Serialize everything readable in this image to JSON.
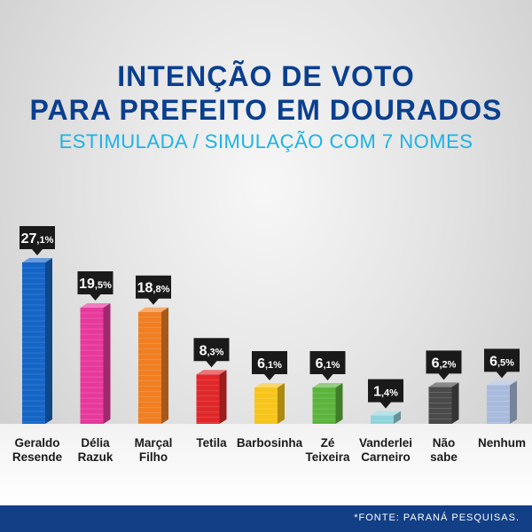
{
  "chart_data": {
    "type": "bar",
    "title": "INTENÇÃO DE VOTO",
    "title_line2": "PARA PREFEITO EM DOURADOS",
    "subtitle": "ESTIMULADA / SIMULAÇÃO COM 7 NOMES",
    "unit": "%",
    "categories": [
      [
        "Geraldo",
        "Resende"
      ],
      [
        "Délia",
        "Razuk"
      ],
      [
        "Marçal",
        "Filho"
      ],
      [
        "Tetila"
      ],
      [
        "Barbosinha"
      ],
      [
        "Zé",
        "Teixeira"
      ],
      [
        "Vanderlei",
        "Carneiro"
      ],
      [
        "Não",
        "sabe"
      ],
      [
        "Nenhum"
      ]
    ],
    "values": [
      27.1,
      19.5,
      18.8,
      8.3,
      6.1,
      6.1,
      1.4,
      6.2,
      6.5
    ],
    "value_labels": [
      {
        "int": "27",
        "dec": ",1%"
      },
      {
        "int": "19",
        "dec": ",5%"
      },
      {
        "int": "18",
        "dec": ",8%"
      },
      {
        "int": "8",
        "dec": ",3%"
      },
      {
        "int": "6",
        "dec": ",1%"
      },
      {
        "int": "6",
        "dec": ",1%"
      },
      {
        "int": "1",
        "dec": ",4%"
      },
      {
        "int": "6",
        "dec": ",2%"
      },
      {
        "int": "6",
        "dec": ",5%"
      }
    ],
    "colors": [
      "#1565c6",
      "#e6399b",
      "#f07f23",
      "#e0282a",
      "#f7c51a",
      "#5cb43c",
      "#8fd3dc",
      "#4a4a4a",
      "#a9bbdc"
    ],
    "ylim": [
      0,
      27.1
    ],
    "grid": false,
    "legend": "none"
  },
  "footer": {
    "source": "*FONTE:  PARANÁ  PESQUISAS."
  }
}
